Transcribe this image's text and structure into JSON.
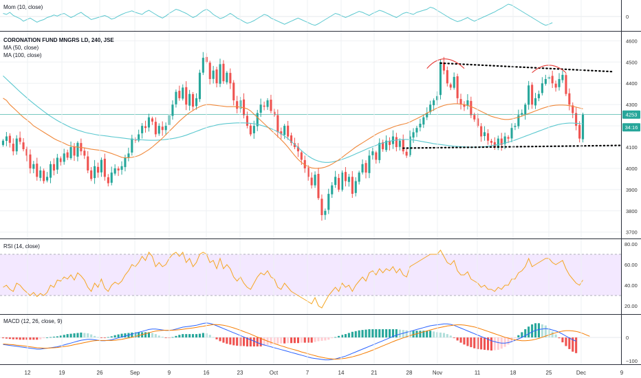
{
  "chart_data": {
    "type": "candlestick",
    "title": "CORONATION FUND MNGRS LD, 240, JSE",
    "price_axis": {
      "ticks": [
        3700,
        3800,
        3900,
        4000,
        4100,
        4200,
        4300,
        4400,
        4500,
        4600
      ],
      "range": [
        3670,
        4640
      ]
    },
    "price_badges": [
      {
        "text": "4253",
        "value": 4253
      },
      {
        "text": "34:16",
        "value": 4193
      }
    ],
    "time_labels": [
      "12",
      "19",
      "26",
      "Sep",
      "9",
      "16",
      "23",
      "Oct",
      "7",
      "14",
      "21",
      "28",
      "Nov",
      "11",
      "18",
      "25",
      "Dec",
      "9"
    ],
    "colors": {
      "up": "#26a69a",
      "down": "#ef5350",
      "ma50": "#f0883a",
      "ma100": "#5bc8cf",
      "mom": "#5bc8cf",
      "rsi": "#f5a623",
      "rsi_band": "#f3e8ff",
      "macd": "#2962ff",
      "signal": "#f57c00",
      "pattern": "#e53935",
      "trendline": "#000000"
    },
    "overlays": [
      {
        "name": "MA (50, close)",
        "label": "MA (50, close)"
      },
      {
        "name": "MA (100, close)",
        "label": "MA (100, close)"
      }
    ],
    "candles_close": [
      4130,
      4150,
      4120,
      4080,
      4140,
      4125,
      4090,
      4060,
      4000,
      4020,
      3960,
      3990,
      3940,
      3960,
      4020,
      3990,
      4050,
      4030,
      4070,
      4050,
      4100,
      4060,
      4120,
      4080,
      4060,
      3990,
      3950,
      4010,
      3980,
      4040,
      3960,
      3930,
      3980,
      4000,
      3990,
      4010,
      4050,
      4070,
      4140,
      4130,
      4160,
      4200,
      4190,
      4240,
      4220,
      4160,
      4200,
      4180,
      4200,
      4250,
      4300,
      4360,
      4330,
      4380,
      4300,
      4350,
      4290,
      4330,
      4450,
      4520,
      4500,
      4420,
      4460,
      4400,
      4490,
      4410,
      4450,
      4400,
      4320,
      4280,
      4320,
      4250,
      4200,
      4160,
      4200,
      4260,
      4300,
      4290,
      4320,
      4270,
      4250,
      4170,
      4160,
      4200,
      4150,
      4120,
      4100,
      4080,
      4040,
      4000,
      3960,
      3920,
      3970,
      3860,
      3780,
      3800,
      3880,
      3920,
      3960,
      3900,
      3980,
      3940,
      3960,
      3880,
      3940,
      3980,
      4020,
      3980,
      4060,
      4080,
      4040,
      4120,
      4090,
      4130,
      4110,
      4150,
      4100,
      4130,
      4080,
      4060,
      4150,
      4170,
      4190,
      4210,
      4240,
      4260,
      4300,
      4320,
      4340,
      4500,
      4460,
      4400,
      4380,
      4430,
      4330,
      4300,
      4290,
      4320,
      4250,
      4230,
      4200,
      4150,
      4170,
      4130,
      4120,
      4100,
      4140,
      4110,
      4150,
      4140,
      4190,
      4200,
      4250,
      4260,
      4300,
      4390,
      4300,
      4330,
      4350,
      4400,
      4420,
      4430,
      4400,
      4380,
      4420,
      4440,
      4350,
      4300,
      4260,
      4200,
      4140,
      4253
    ],
    "ma50_values": [
      4330,
      4320,
      4300,
      4285,
      4270,
      4255,
      4240,
      4228,
      4215,
      4200,
      4190,
      4180,
      4170,
      4160,
      4150,
      4140,
      4132,
      4125,
      4118,
      4110,
      4105,
      4102,
      4100,
      4098,
      4096,
      4093,
      4090,
      4088,
      4086,
      4084,
      4080,
      4075,
      4070,
      4064,
      4058,
      4052,
      4050,
      4050,
      4052,
      4055,
      4060,
      4068,
      4078,
      4088,
      4100,
      4114,
      4128,
      4142,
      4158,
      4174,
      4190,
      4206,
      4222,
      4236,
      4250,
      4262,
      4272,
      4282,
      4290,
      4296,
      4300,
      4300,
      4298,
      4296,
      4294,
      4292,
      4290,
      4290,
      4290,
      4290,
      4288,
      4285,
      4280,
      4270,
      4255,
      4240,
      4225,
      4210,
      4195,
      4180,
      4165,
      4150,
      4135,
      4118,
      4100,
      4080,
      4060,
      4042,
      4028,
      4016,
      4008,
      4002,
      4000,
      4000,
      4002,
      4006,
      4012,
      4020,
      4030,
      4040,
      4052,
      4064,
      4076,
      4088,
      4100,
      4110,
      4120,
      4130,
      4140,
      4150,
      4160,
      4168,
      4175,
      4182,
      4188,
      4194,
      4200,
      4204,
      4208,
      4212,
      4218,
      4226,
      4234,
      4242,
      4250,
      4260,
      4268,
      4276,
      4284,
      4290,
      4296,
      4300,
      4302,
      4304,
      4304,
      4302,
      4300,
      4296,
      4290,
      4284,
      4276,
      4268,
      4260,
      4252,
      4245,
      4240,
      4236,
      4232,
      4230,
      4230,
      4232,
      4236,
      4240,
      4246,
      4252,
      4258,
      4264,
      4270,
      4276,
      4282,
      4287,
      4292,
      4295,
      4297,
      4298,
      4298,
      4297,
      4295,
      4292,
      4288,
      4284,
      4280
    ],
    "ma100_values": [
      4435,
      4420,
      4405,
      4390,
      4375,
      4360,
      4346,
      4332,
      4318,
      4305,
      4292,
      4280,
      4268,
      4256,
      4245,
      4235,
      4225,
      4216,
      4208,
      4200,
      4192,
      4186,
      4180,
      4175,
      4170,
      4166,
      4163,
      4160,
      4157,
      4155,
      4153,
      4151,
      4149,
      4147,
      4145,
      4143,
      4141,
      4139,
      4137,
      4136,
      4135,
      4134,
      4133,
      4132,
      4132,
      4132,
      4133,
      4134,
      4136,
      4138,
      4140,
      4143,
      4147,
      4151,
      4156,
      4162,
      4168,
      4174,
      4180,
      4186,
      4192,
      4196,
      4200,
      4204,
      4207,
      4209,
      4211,
      4212,
      4213,
      4214,
      4214,
      4214,
      4213,
      4212,
      4210,
      4207,
      4203,
      4198,
      4193,
      4187,
      4180,
      4172,
      4163,
      4152,
      4140,
      4126,
      4112,
      4098,
      4084,
      4070,
      4058,
      4048,
      4040,
      4034,
      4030,
      4028,
      4028,
      4030,
      4033,
      4037,
      4042,
      4048,
      4054,
      4061,
      4068,
      4075,
      4082,
      4089,
      4096,
      4102,
      4108,
      4114,
      4119,
      4124,
      4128,
      4131,
      4133,
      4135,
      4136,
      4136,
      4135,
      4133,
      4131,
      4128,
      4125,
      4122,
      4119,
      4116,
      4114,
      4112,
      4110,
      4108,
      4106,
      4104,
      4103,
      4102,
      4101,
      4100,
      4100,
      4100,
      4100,
      4101,
      4102,
      4104,
      4106,
      4109,
      4112,
      4115,
      4119,
      4123,
      4128,
      4133,
      4139,
      4145,
      4151,
      4157,
      4163,
      4169,
      4175,
      4181,
      4187,
      4193,
      4198,
      4203,
      4207,
      4210,
      4212,
      4213,
      4213,
      4212,
      4211,
      4210
    ],
    "momentum": {
      "label": "Mom (10, close)",
      "ticks": [
        0
      ],
      "values": [
        60,
        40,
        80,
        20,
        -10,
        -40,
        -90,
        -60,
        -30,
        -70,
        -110,
        -80,
        -60,
        -20,
        0,
        30,
        10,
        40,
        60,
        20,
        -20,
        10,
        50,
        80,
        30,
        -10,
        -60,
        -40,
        -20,
        0,
        20,
        -10,
        -50,
        -30,
        10,
        40,
        70,
        90,
        110,
        80,
        60,
        40,
        90,
        120,
        80,
        40,
        0,
        -30,
        10,
        60,
        100,
        140,
        120,
        90,
        60,
        20,
        -20,
        10,
        60,
        110,
        140,
        100,
        40,
        0,
        -40,
        -20,
        20,
        60,
        20,
        -30,
        -60,
        -100,
        -130,
        -110,
        -80,
        -40,
        0,
        40,
        20,
        -30,
        -60,
        -90,
        -120,
        -150,
        -120,
        -90,
        -60,
        -30,
        -60,
        -90,
        -120,
        -150,
        -170,
        -140,
        -100,
        -60,
        -20,
        20,
        60,
        40,
        10,
        -20,
        10,
        40,
        70,
        100,
        80,
        50,
        20,
        60,
        90,
        120,
        100,
        70,
        40,
        10,
        -20,
        20,
        60,
        80,
        60,
        40,
        80,
        100,
        120,
        140,
        180,
        160,
        120,
        80,
        40,
        0,
        -40,
        -70,
        -100,
        -80,
        -50,
        -20,
        -60,
        -90,
        -60,
        -30,
        0,
        30,
        60,
        90,
        130,
        160,
        200,
        240,
        220,
        180,
        140,
        100,
        60,
        20,
        -20,
        -60,
        -100,
        -140,
        -170,
        -150,
        -120
      ]
    },
    "rsi": {
      "label": "RSI (14, close)",
      "ticks": [
        20.0,
        40.0,
        60.0,
        80.0
      ],
      "tick_labels": [
        "20.00",
        "40.00",
        "60.00",
        "80.00"
      ],
      "upper": 70,
      "lower": 30,
      "values": [
        38,
        40,
        36,
        34,
        42,
        40,
        36,
        33,
        30,
        33,
        29,
        32,
        30,
        33,
        40,
        38,
        45,
        44,
        48,
        46,
        50,
        45,
        52,
        49,
        45,
        38,
        34,
        42,
        38,
        46,
        37,
        34,
        40,
        43,
        41,
        44,
        50,
        54,
        60,
        58,
        62,
        68,
        64,
        72,
        68,
        58,
        62,
        58,
        60,
        66,
        70,
        72,
        68,
        72,
        62,
        66,
        58,
        62,
        70,
        72,
        70,
        62,
        64,
        56,
        66,
        56,
        60,
        56,
        48,
        44,
        48,
        42,
        38,
        36,
        42,
        48,
        52,
        50,
        54,
        48,
        46,
        38,
        36,
        42,
        38,
        34,
        32,
        30,
        28,
        26,
        24,
        22,
        28,
        20,
        18,
        24,
        30,
        34,
        38,
        34,
        42,
        38,
        40,
        34,
        40,
        44,
        48,
        44,
        52,
        54,
        50,
        56,
        52,
        56,
        54,
        58,
        52,
        56,
        50,
        48,
        58,
        60,
        62,
        64,
        66,
        68,
        70,
        70,
        70,
        74,
        68,
        62,
        60,
        64,
        54,
        50,
        50,
        53,
        46,
        44,
        42,
        38,
        40,
        36,
        36,
        34,
        38,
        36,
        40,
        40,
        46,
        46,
        52,
        54,
        58,
        66,
        58,
        60,
        62,
        64,
        66,
        66,
        62,
        60,
        62,
        64,
        56,
        50,
        46,
        42,
        40,
        45
      ]
    },
    "macd": {
      "label": "MACD (12, 26, close, 9)",
      "ticks": [
        0,
        -100
      ],
      "tick_labels": [
        "0",
        "−100"
      ],
      "macd_values": [
        -30,
        -32,
        -34,
        -36,
        -38,
        -40,
        -42,
        -44,
        -46,
        -48,
        -50,
        -50,
        -48,
        -46,
        -44,
        -42,
        -40,
        -36,
        -32,
        -28,
        -24,
        -20,
        -16,
        -12,
        -10,
        -8,
        -8,
        -10,
        -12,
        -14,
        -14,
        -12,
        -10,
        -6,
        -2,
        2,
        6,
        10,
        14,
        18,
        22,
        26,
        30,
        34,
        36,
        36,
        34,
        32,
        30,
        30,
        32,
        36,
        40,
        44,
        46,
        48,
        50,
        52,
        56,
        60,
        62,
        60,
        56,
        50,
        44,
        38,
        32,
        26,
        20,
        14,
        8,
        2,
        -4,
        -10,
        -16,
        -22,
        -28,
        -32,
        -36,
        -40,
        -44,
        -48,
        -52,
        -56,
        -60,
        -64,
        -68,
        -72,
        -76,
        -80,
        -84,
        -88,
        -90,
        -92,
        -94,
        -96,
        -96,
        -94,
        -92,
        -88,
        -84,
        -80,
        -74,
        -68,
        -62,
        -56,
        -50,
        -44,
        -38,
        -32,
        -26,
        -20,
        -14,
        -8,
        -2,
        4,
        10,
        14,
        18,
        22,
        26,
        30,
        34,
        38,
        42,
        46,
        50,
        52,
        54,
        56,
        58,
        58,
        56,
        52,
        46,
        40,
        34,
        28,
        22,
        16,
        10,
        4,
        -2,
        -8,
        -14,
        -18,
        -22,
        -24,
        -24,
        -22,
        -18,
        -12,
        -6,
        0,
        8,
        16,
        24,
        30,
        34,
        36,
        38,
        36,
        32,
        28,
        22,
        14,
        6,
        -2,
        -10,
        -16
      ],
      "signal_values": [
        -28,
        -29,
        -30,
        -31,
        -33,
        -34,
        -36,
        -38,
        -40,
        -42,
        -44,
        -45,
        -46,
        -46,
        -45,
        -44,
        -43,
        -41,
        -39,
        -37,
        -34,
        -31,
        -28,
        -25,
        -22,
        -19,
        -16,
        -14,
        -13,
        -13,
        -13,
        -13,
        -13,
        -12,
        -10,
        -8,
        -5,
        -2,
        1,
        4,
        8,
        12,
        16,
        20,
        24,
        27,
        29,
        30,
        31,
        31,
        31,
        32,
        33,
        35,
        37,
        39,
        41,
        43,
        46,
        48,
        51,
        53,
        55,
        55,
        54,
        52,
        49,
        45,
        41,
        36,
        31,
        25,
        20,
        14,
        8,
        2,
        -4,
        -10,
        -16,
        -21,
        -26,
        -31,
        -36,
        -40,
        -45,
        -49,
        -53,
        -57,
        -62,
        -66,
        -70,
        -74,
        -78,
        -82,
        -85,
        -88,
        -90,
        -92,
        -93,
        -92,
        -91,
        -89,
        -86,
        -83,
        -79,
        -75,
        -70,
        -65,
        -60,
        -54,
        -48,
        -42,
        -36,
        -30,
        -24,
        -18,
        -12,
        -7,
        -2,
        3,
        8,
        12,
        16,
        20,
        24,
        28,
        32,
        36,
        40,
        43,
        46,
        49,
        51,
        53,
        54,
        54,
        53,
        51,
        48,
        45,
        41,
        36,
        31,
        26,
        21,
        16,
        11,
        6,
        1,
        -3,
        -7,
        -10,
        -12,
        -14,
        -14,
        -13,
        -11,
        -8,
        -4,
        1,
        6,
        11,
        16,
        20,
        24,
        27,
        29,
        29,
        28,
        26,
        22,
        17,
        11,
        5
      ]
    },
    "annotations": [
      "head-and-shoulders arcs",
      "upper trendline",
      "lower trendline"
    ]
  }
}
